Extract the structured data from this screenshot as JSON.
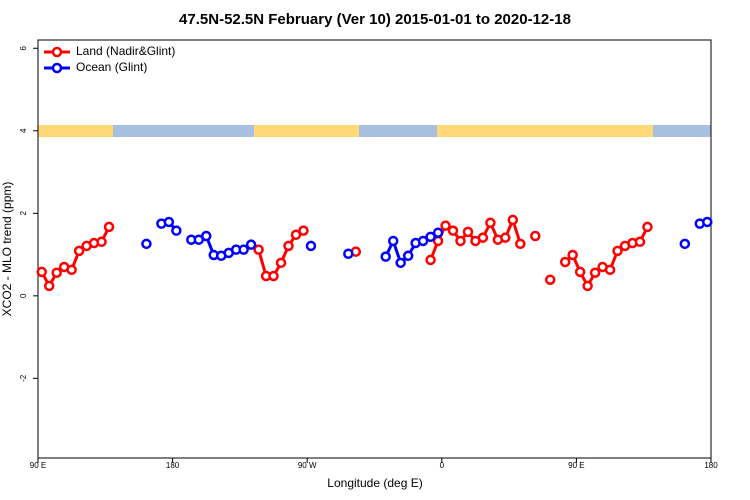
{
  "chart_data": {
    "type": "line",
    "title": "47.5N-52.5N February (Ver 10)   2015-01-01 to 2020-12-18",
    "x_label": "Longitude (deg E)",
    "y_label": "XCO2 - MLO trend (ppm)",
    "xlim": [
      90,
      540
    ],
    "ylim": [
      -3.93,
      6.2
    ],
    "xticks": [
      {
        "value": 90,
        "label": "90 E"
      },
      180,
      {
        "value": 270,
        "label": "90 W"
      },
      {
        "value": 360,
        "label": "0"
      },
      {
        "value": 450,
        "label": "90 E"
      },
      {
        "value": 540,
        "label": "180"
      }
    ],
    "yticks": [
      -2,
      0,
      2,
      4,
      6
    ],
    "legend": "top-left",
    "series": [
      {
        "name": "Land (Nadir&Glint)",
        "color": "#ff0000",
        "x": [
          92.5,
          97.5,
          102.5,
          107.5,
          112.5,
          117.5,
          122.5,
          127.5,
          132.5,
          137.5,
          237.5,
          242.5,
          247.5,
          252.5,
          257.5,
          262.5,
          267.5,
          302.5,
          352.5,
          357.5,
          362.5,
          367.5,
          372.5,
          377.5,
          382.5,
          387.5,
          392.5,
          397.5,
          402.5,
          407.5,
          412.5,
          422.5,
          432.5,
          442.5,
          447.5,
          452.5,
          457.5,
          462.5,
          467.5,
          472.5,
          477.5,
          482.5,
          487.5,
          492.5,
          497.5
        ],
        "values": [
          0.58,
          0.24,
          0.56,
          0.7,
          0.63,
          1.09,
          1.21,
          1.28,
          1.31,
          1.67,
          1.12,
          0.48,
          0.48,
          0.8,
          1.21,
          1.48,
          1.58,
          1.07,
          0.87,
          1.33,
          1.7,
          1.58,
          1.33,
          1.55,
          1.33,
          1.41,
          1.77,
          1.36,
          1.41,
          1.84,
          1.26,
          1.45,
          0.39,
          0.82,
          0.99,
          0.58,
          0.24,
          0.56,
          0.7,
          0.63,
          1.09,
          1.21,
          1.28,
          1.31,
          1.67
        ]
      },
      {
        "name": "Ocean (Glint)",
        "color": "#0000ff",
        "x": [
          162.5,
          172.5,
          177.5,
          182.5,
          192.5,
          197.5,
          202.5,
          207.5,
          212.5,
          217.5,
          222.5,
          227.5,
          232.5,
          272.5,
          297.5,
          322.5,
          327.5,
          332.5,
          337.5,
          342.5,
          347.5,
          352.5,
          357.5,
          522.5,
          532.5,
          537.5
        ],
        "values": [
          1.26,
          1.75,
          1.79,
          1.58,
          1.36,
          1.36,
          1.45,
          0.99,
          0.97,
          1.04,
          1.12,
          1.12,
          1.24,
          1.21,
          1.02,
          0.95,
          1.33,
          0.8,
          0.97,
          1.28,
          1.33,
          1.43,
          1.53,
          1.26,
          1.75,
          1.79
        ]
      }
    ]
  }
}
